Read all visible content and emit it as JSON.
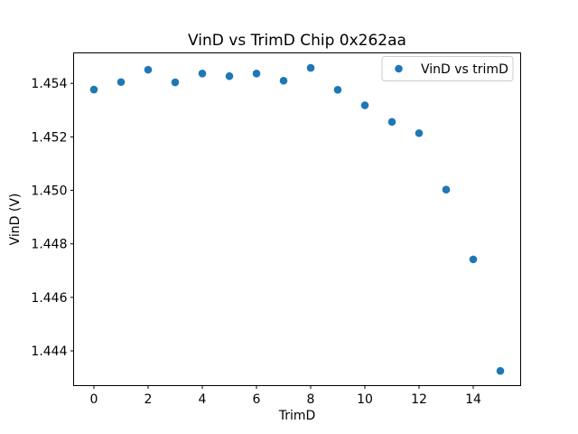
{
  "chart_data": {
    "type": "scatter",
    "title": "VinD vs TrimD Chip 0x262aa",
    "xlabel": "TrimD",
    "ylabel": "VinD (V)",
    "legend_position": "upper right",
    "grid": false,
    "marker_color": "#1f77b4",
    "xlim": [
      -0.75,
      15.75
    ],
    "ylim": [
      1.4427,
      1.45514
    ],
    "xticks": [
      0,
      2,
      4,
      6,
      8,
      10,
      12,
      14
    ],
    "xtick_labels": [
      "0",
      "2",
      "4",
      "6",
      "8",
      "10",
      "12",
      "14"
    ],
    "yticks": [
      1.444,
      1.446,
      1.448,
      1.45,
      1.452,
      1.454
    ],
    "ytick_labels": [
      "1.444",
      "1.446",
      "1.448",
      "1.450",
      "1.452",
      "1.454"
    ],
    "series": [
      {
        "name": "VinD vs trimD",
        "x": [
          0,
          1,
          2,
          3,
          4,
          5,
          6,
          7,
          8,
          9,
          10,
          11,
          12,
          13,
          14,
          15
        ],
        "y": [
          1.45377,
          1.45405,
          1.45451,
          1.45404,
          1.45437,
          1.45427,
          1.45437,
          1.4541,
          1.45458,
          1.45376,
          1.45318,
          1.45256,
          1.45214,
          1.45003,
          1.44742,
          1.44325
        ]
      }
    ]
  }
}
